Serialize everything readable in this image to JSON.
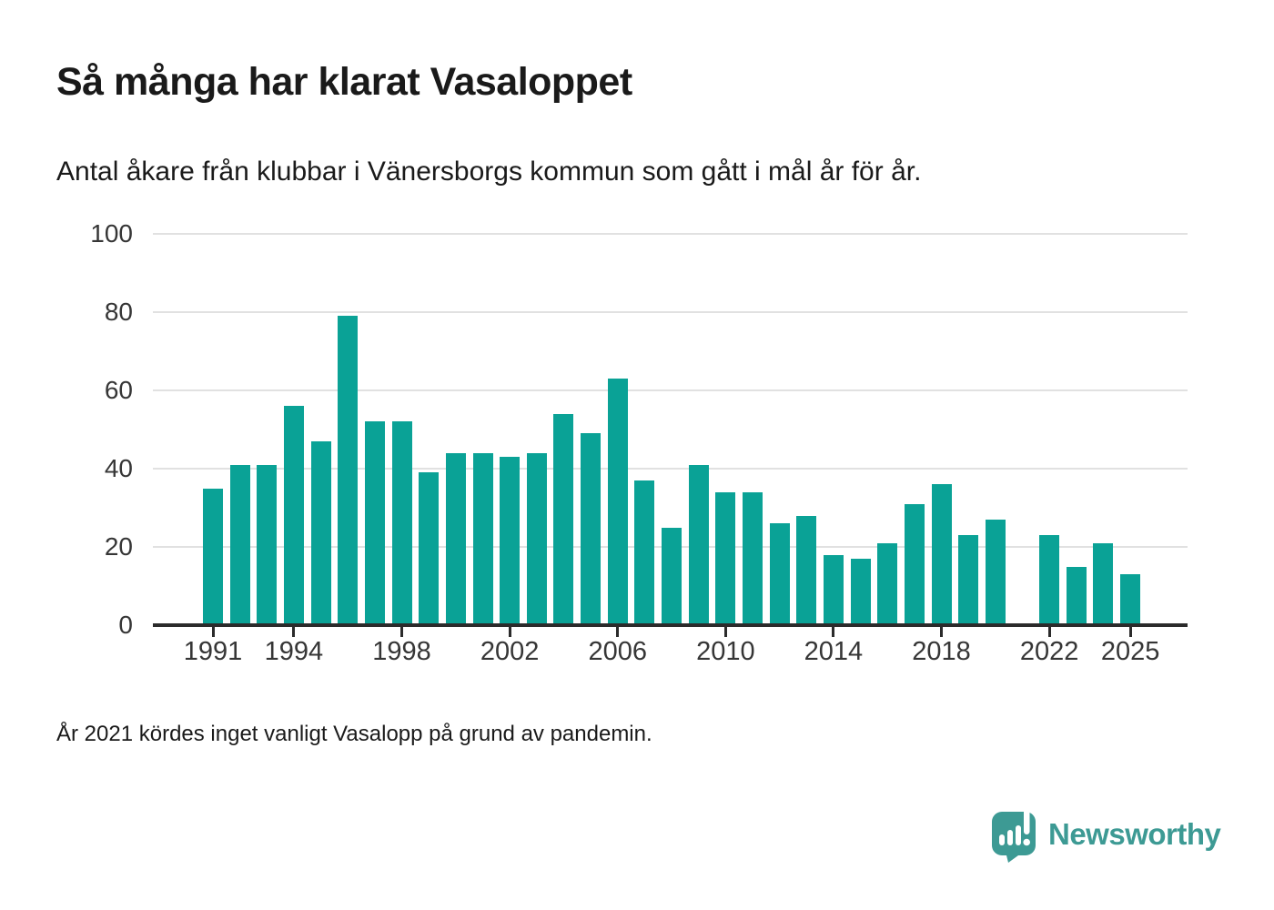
{
  "page": {
    "title": "Så många har klarat Vasaloppet",
    "subtitle": "Antal åkare från klubbar i Vänersborgs kommun som gått i mål år för år.",
    "footnote": "År 2021 kördes inget vanligt Vasalopp på grund av pandemin.",
    "brand": {
      "wordmark": "Newsworthy",
      "logo_icon": "speech-bubble-bar-chart-exclamation-icon"
    }
  },
  "colors": {
    "bar": "#0aa296",
    "grid": "#e1e1e1",
    "axis": "#2b2b2b",
    "heading_text": "#1a1a1a",
    "tick_text": "#363636",
    "brand_teal": "#3d9a94"
  },
  "chart_data": {
    "type": "bar",
    "title": "Så många har klarat Vasaloppet",
    "subtitle": "Antal åkare från klubbar i Vänersborgs kommun som gått i mål år för år.",
    "categories": [
      1991,
      1992,
      1993,
      1994,
      1995,
      1996,
      1997,
      1998,
      1999,
      2000,
      2001,
      2002,
      2003,
      2004,
      2005,
      2006,
      2007,
      2008,
      2009,
      2010,
      2011,
      2012,
      2013,
      2014,
      2015,
      2016,
      2017,
      2018,
      2019,
      2020,
      2021,
      2022,
      2023,
      2024,
      2025
    ],
    "values": [
      35,
      41,
      41,
      56,
      47,
      79,
      52,
      52,
      39,
      44,
      44,
      43,
      44,
      54,
      49,
      63,
      37,
      25,
      41,
      34,
      34,
      26,
      28,
      18,
      17,
      21,
      31,
      36,
      23,
      27,
      null,
      23,
      15,
      21,
      13
    ],
    "x_tick_labels": [
      "1991",
      "1994",
      "1998",
      "2002",
      "2006",
      "2010",
      "2014",
      "2018",
      "2022",
      "2025"
    ],
    "y_ticks": [
      0,
      20,
      40,
      60,
      80,
      100
    ],
    "xlabel": "",
    "ylabel": "",
    "ylim": [
      0,
      100
    ],
    "grid": "horizontal",
    "legend": "none",
    "notes": "No bar for 2021 (race cancelled due to pandemic)"
  }
}
